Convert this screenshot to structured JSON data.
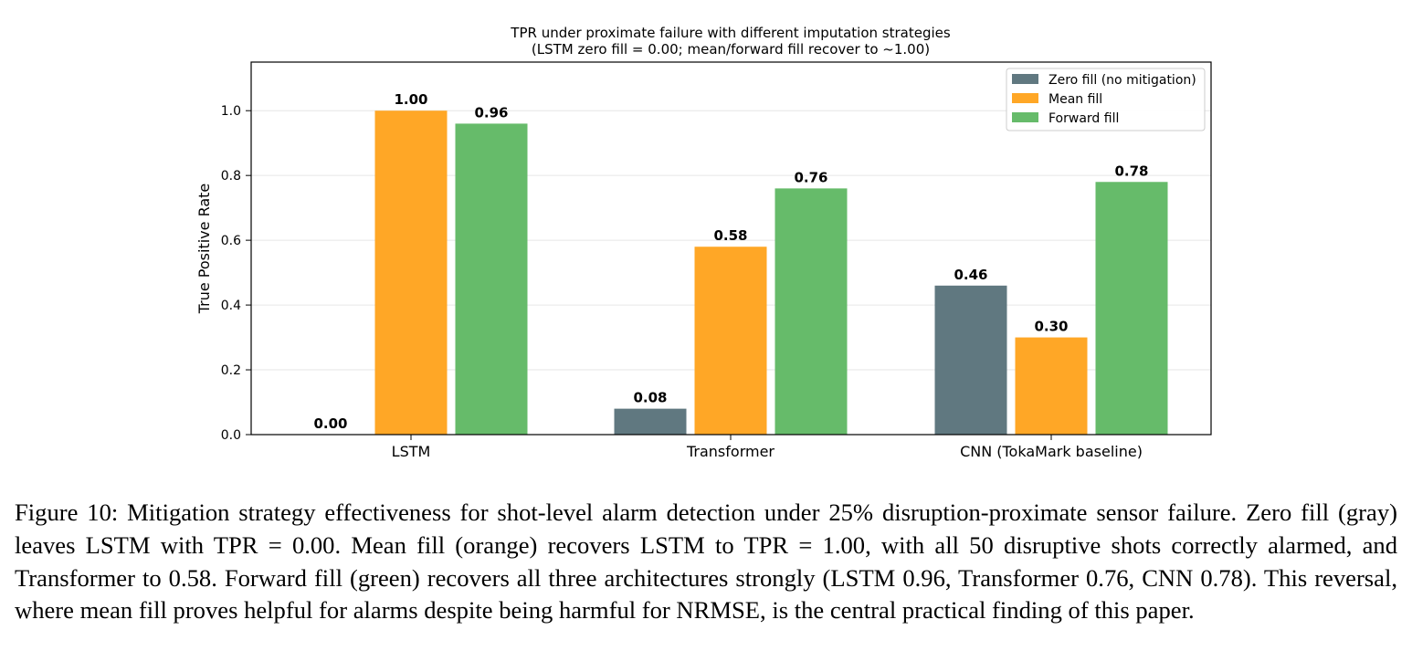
{
  "chart_data": {
    "type": "bar",
    "title_line1": "TPR under proximate failure with different imputation strategies",
    "title_line2": "(LSTM zero fill = 0.00; mean/forward fill recover to ~1.00)",
    "xlabel": "",
    "ylabel": "True Positive Rate",
    "ylim": [
      0,
      1.15
    ],
    "yticks": [
      0.0,
      0.2,
      0.4,
      0.6,
      0.8,
      1.0
    ],
    "ytick_labels": [
      "0.0",
      "0.2",
      "0.4",
      "0.6",
      "0.8",
      "1.0"
    ],
    "grid": true,
    "legend_position": "top-right",
    "categories": [
      "LSTM",
      "Transformer",
      "CNN (TokaMark baseline)"
    ],
    "series": [
      {
        "name": "Zero fill (no mitigation)",
        "color": "#607880",
        "values": [
          0.0,
          0.08,
          0.46
        ],
        "labels": [
          "0.00",
          "0.08",
          "0.46"
        ]
      },
      {
        "name": "Mean fill",
        "color": "#FFA726",
        "values": [
          1.0,
          0.58,
          0.3
        ],
        "labels": [
          "1.00",
          "0.58",
          "0.30"
        ]
      },
      {
        "name": "Forward fill",
        "color": "#66BB6A",
        "values": [
          0.96,
          0.76,
          0.78
        ],
        "labels": [
          "0.96",
          "0.76",
          "0.78"
        ]
      }
    ]
  },
  "caption": {
    "text": "Figure 10: Mitigation strategy effectiveness for shot-level alarm detection under 25% disruption-proximate sensor failure. Zero fill (gray) leaves LSTM with TPR = 0.00. Mean fill (orange) recovers LSTM to TPR = 1.00, with all 50 disruptive shots correctly alarmed, and Transformer to 0.58. Forward fill (green) recovers all three architectures strongly (LSTM 0.96, Transformer 0.76, CNN 0.78). This reversal, where mean fill proves helpful for alarms despite being harmful for NRMSE, is the central practical finding of this paper."
  }
}
